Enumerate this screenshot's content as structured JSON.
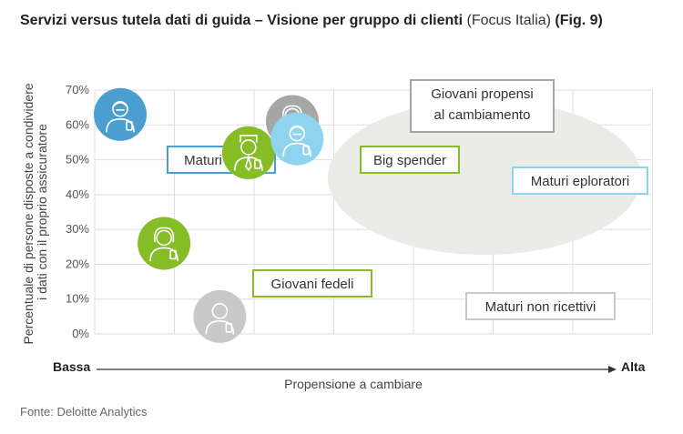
{
  "title": {
    "main": "Servizi versus tutela dati di guida – Visione per gruppo di clienti",
    "focus": "(Focus Italia)",
    "fig": "(Fig. 9)"
  },
  "source": "Fonte: Deloitte Analytics",
  "colors": {
    "blue": "#4a9fd0",
    "light_blue": "#8fd3ee",
    "green": "#86bc25",
    "gray": "#a6a6a6",
    "light_gray": "#c9c9c9",
    "ellipse": "#ebebe8",
    "grid": "#dddddd"
  },
  "chart_data": {
    "type": "scatter",
    "title": "Servizi versus tutela dati di guida – Visione per gruppo di clienti (Focus Italia) (Fig. 9)",
    "ylabel": "Percentuale di persone disposte a condividere i dati con il proprio assicuratore",
    "ylabel_lines": [
      "Percentuale di persone disposte a condividere",
      "i dati con il proprio assicuratore"
    ],
    "xlabel": "Propensione a cambiare",
    "x_low_label": "Bassa",
    "x_high_label": "Alta",
    "ylim": [
      0,
      70
    ],
    "yticks": [
      "0%",
      "10%",
      "20%",
      "30%",
      "40%",
      "50%",
      "60%",
      "70%"
    ],
    "grid": true,
    "points": [
      {
        "name": "Maturi fedeli",
        "x": 0.32,
        "y": 63,
        "color": "#4a9fd0",
        "icon": "mature-person-icon"
      },
      {
        "name": "Giovani fedeli",
        "x": 0.87,
        "y": 26,
        "color": "#86bc25",
        "icon": "young-person-icon"
      },
      {
        "name": "Big spender",
        "x": 1.93,
        "y": 52,
        "color": "#86bc25",
        "icon": "businessman-icon"
      },
      {
        "name": "Giovani propensi al cambiamento",
        "x": 2.48,
        "y": 61,
        "color": "#a6a6a6",
        "icon": "young-person-icon"
      },
      {
        "name": "Maturi eploratori",
        "x": 2.54,
        "y": 56,
        "color": "#8fd3ee",
        "icon": "mature-person-icon"
      },
      {
        "name": "Maturi non ricettivi",
        "x": 1.57,
        "y": 5,
        "color": "#c9c9c9",
        "icon": "person-icon"
      }
    ]
  }
}
